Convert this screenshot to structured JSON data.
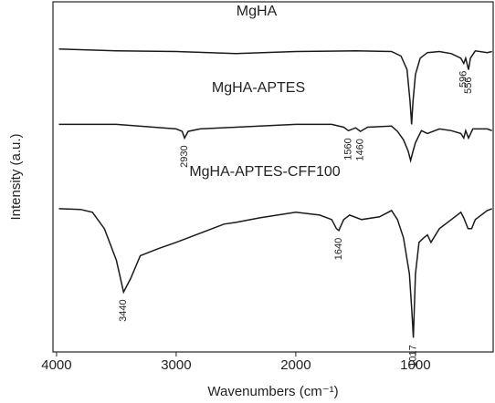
{
  "chart_data": {
    "type": "line",
    "xlabel": "Wavenumbers (cm⁻¹)",
    "ylabel": "Intensity (a.u.)",
    "xlim": [
      4030,
      350
    ],
    "ylim": [
      0,
      100
    ],
    "xticks": [
      4000,
      3000,
      2000,
      1000
    ],
    "series": [
      {
        "name": "MgHA",
        "color": "#1a1a1a",
        "peaks": [
          596,
          556
        ],
        "x": [
          3980,
          3500,
          3000,
          2500,
          2000,
          1500,
          1200,
          1120,
          1070,
          1045,
          1032,
          1020,
          1000,
          960,
          900,
          800,
          700,
          620,
          596,
          580,
          556,
          540,
          500,
          400,
          360
        ],
        "values": [
          86.5,
          86,
          85.8,
          85.2,
          85.8,
          86,
          85.8,
          84.5,
          80.6,
          71.5,
          65,
          71.5,
          79.3,
          83.9,
          85.5,
          85.8,
          85.2,
          83.9,
          82.4,
          83.9,
          80.6,
          83.9,
          86,
          85.5,
          85.8
        ]
      },
      {
        "name": "MgHA-APTES",
        "color": "#1a1a1a",
        "peaks": [
          2930,
          1560,
          1460
        ],
        "x": [
          3980,
          3500,
          3000,
          2950,
          2930,
          2900,
          2800,
          2500,
          2000,
          1700,
          1600,
          1560,
          1500,
          1460,
          1400,
          1200,
          1150,
          1100,
          1060,
          1040,
          1020,
          1000,
          950,
          900,
          800,
          700,
          620,
          596,
          580,
          556,
          520,
          400,
          360
        ],
        "values": [
          65,
          65,
          63.7,
          63,
          61.1,
          63,
          63.7,
          64.2,
          65,
          65,
          64.2,
          63.2,
          64,
          63,
          64.2,
          64.5,
          63,
          60.6,
          57.3,
          54.7,
          57.3,
          59.8,
          63.2,
          62.4,
          63.7,
          63.2,
          62.4,
          61.1,
          63.2,
          61.1,
          63.7,
          63.7,
          63.2
        ]
      },
      {
        "name": "MgHA-APTES-CFF100",
        "color": "#1a1a1a",
        "peaks": [
          3440,
          1640,
          1017
        ],
        "x": [
          3980,
          3800,
          3700,
          3600,
          3500,
          3440,
          3380,
          3300,
          3150,
          3000,
          2800,
          2600,
          2500,
          2300,
          2000,
          1800,
          1700,
          1660,
          1640,
          1600,
          1550,
          1450,
          1300,
          1200,
          1150,
          1100,
          1050,
          1030,
          1017,
          1000,
          970,
          930,
          900,
          870,
          800,
          700,
          620,
          596,
          560,
          530,
          500,
          400,
          360
        ],
        "values": [
          40.9,
          40.7,
          39.9,
          35.2,
          26.2,
          17.1,
          21,
          27.5,
          29.5,
          31.3,
          33.9,
          36.5,
          37,
          38.3,
          39.9,
          39.1,
          37.8,
          35.2,
          34.7,
          37.8,
          39.1,
          37.8,
          38.6,
          40.4,
          37.8,
          32.6,
          22.3,
          11.9,
          4.1,
          22.3,
          31.3,
          32.6,
          33.4,
          31.3,
          35.2,
          37.8,
          39.9,
          38.3,
          35.2,
          35.2,
          37.8,
          40.4,
          40.9
        ]
      }
    ]
  }
}
